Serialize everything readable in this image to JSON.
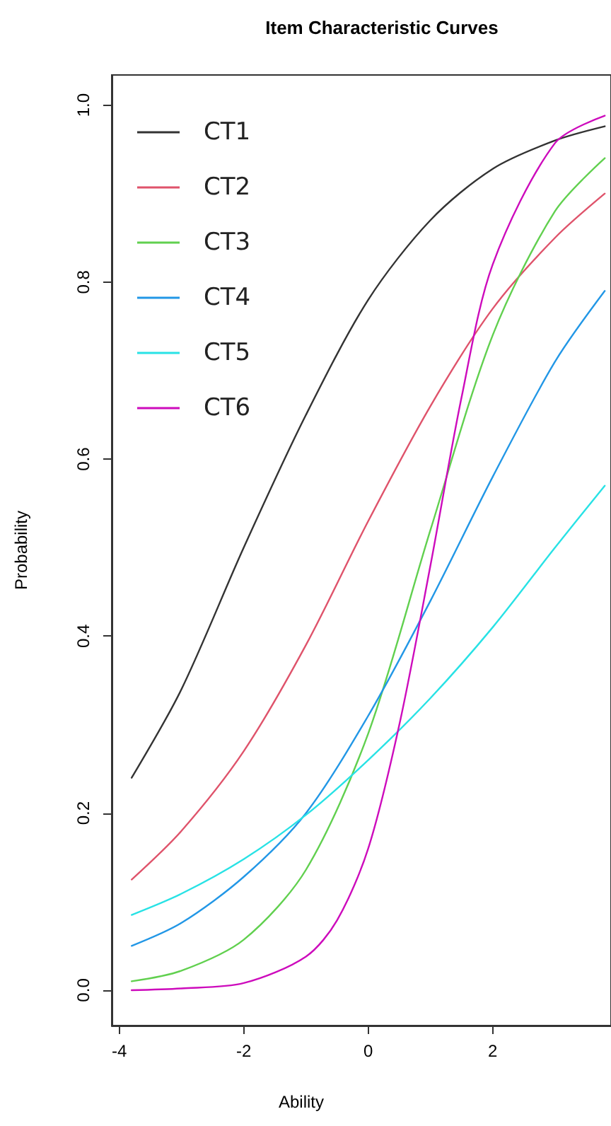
{
  "chart_data": {
    "type": "line",
    "title": "Item Characteristic Curves",
    "xlabel": "Ability",
    "ylabel": "Probability",
    "xlim": [
      -4.12,
      3.9
    ],
    "xticks": [
      -4,
      -2,
      0,
      2
    ],
    "ylim": [
      -0.04,
      1.034
    ],
    "yticks": [
      {
        "value": 0,
        "label": "0.0"
      },
      {
        "value": 0.2,
        "label": "0.2"
      },
      {
        "value": 0.4,
        "label": "0.4"
      },
      {
        "value": 0.6,
        "label": "0.6"
      },
      {
        "value": 0.8,
        "label": "0.8"
      },
      {
        "value": 1,
        "label": "1.0"
      }
    ],
    "legend": "top left",
    "grid": false,
    "marker": "none",
    "line_style": "solid",
    "series": [
      {
        "name": "CT1",
        "color": "#333333",
        "x": [
          -3.8,
          -3,
          -2,
          -1,
          0,
          1,
          2,
          3,
          3.8
        ],
        "values": [
          0.24,
          0.34,
          0.5,
          0.65,
          0.78,
          0.87,
          0.928,
          0.96,
          0.976
        ]
      },
      {
        "name": "CT2",
        "color": "#df536b",
        "x": [
          -3.8,
          -3,
          -2,
          -1,
          0,
          1,
          2,
          3,
          3.8
        ],
        "values": [
          0.125,
          0.18,
          0.27,
          0.39,
          0.53,
          0.66,
          0.77,
          0.85,
          0.9
        ]
      },
      {
        "name": "CT3",
        "color": "#61d04f",
        "x": [
          -3.8,
          -3,
          -2,
          -1,
          0,
          1,
          2,
          3,
          3.8
        ],
        "values": [
          0.01,
          0.022,
          0.057,
          0.136,
          0.29,
          0.52,
          0.74,
          0.88,
          0.94
        ]
      },
      {
        "name": "CT4",
        "color": "#2297e6",
        "x": [
          -3.8,
          -3,
          -2,
          -1,
          0,
          1,
          2,
          3,
          3.8
        ],
        "values": [
          0.05,
          0.076,
          0.128,
          0.2,
          0.31,
          0.44,
          0.58,
          0.71,
          0.79
        ]
      },
      {
        "name": "CT5",
        "color": "#28e2e5",
        "x": [
          -3.8,
          -3,
          -2,
          -1,
          0,
          1,
          2,
          3,
          3.8
        ],
        "values": [
          0.085,
          0.109,
          0.148,
          0.198,
          0.26,
          0.33,
          0.41,
          0.5,
          0.57
        ]
      },
      {
        "name": "CT6",
        "color": "#cd0bbc",
        "x": [
          -3.8,
          -3,
          -2,
          -1,
          -0.5,
          0,
          0.5,
          1,
          1.5,
          2,
          3,
          3.8
        ],
        "values": [
          0,
          0.002,
          0.008,
          0.038,
          0.079,
          0.16,
          0.3,
          0.48,
          0.67,
          0.82,
          0.957,
          0.988
        ]
      }
    ]
  }
}
